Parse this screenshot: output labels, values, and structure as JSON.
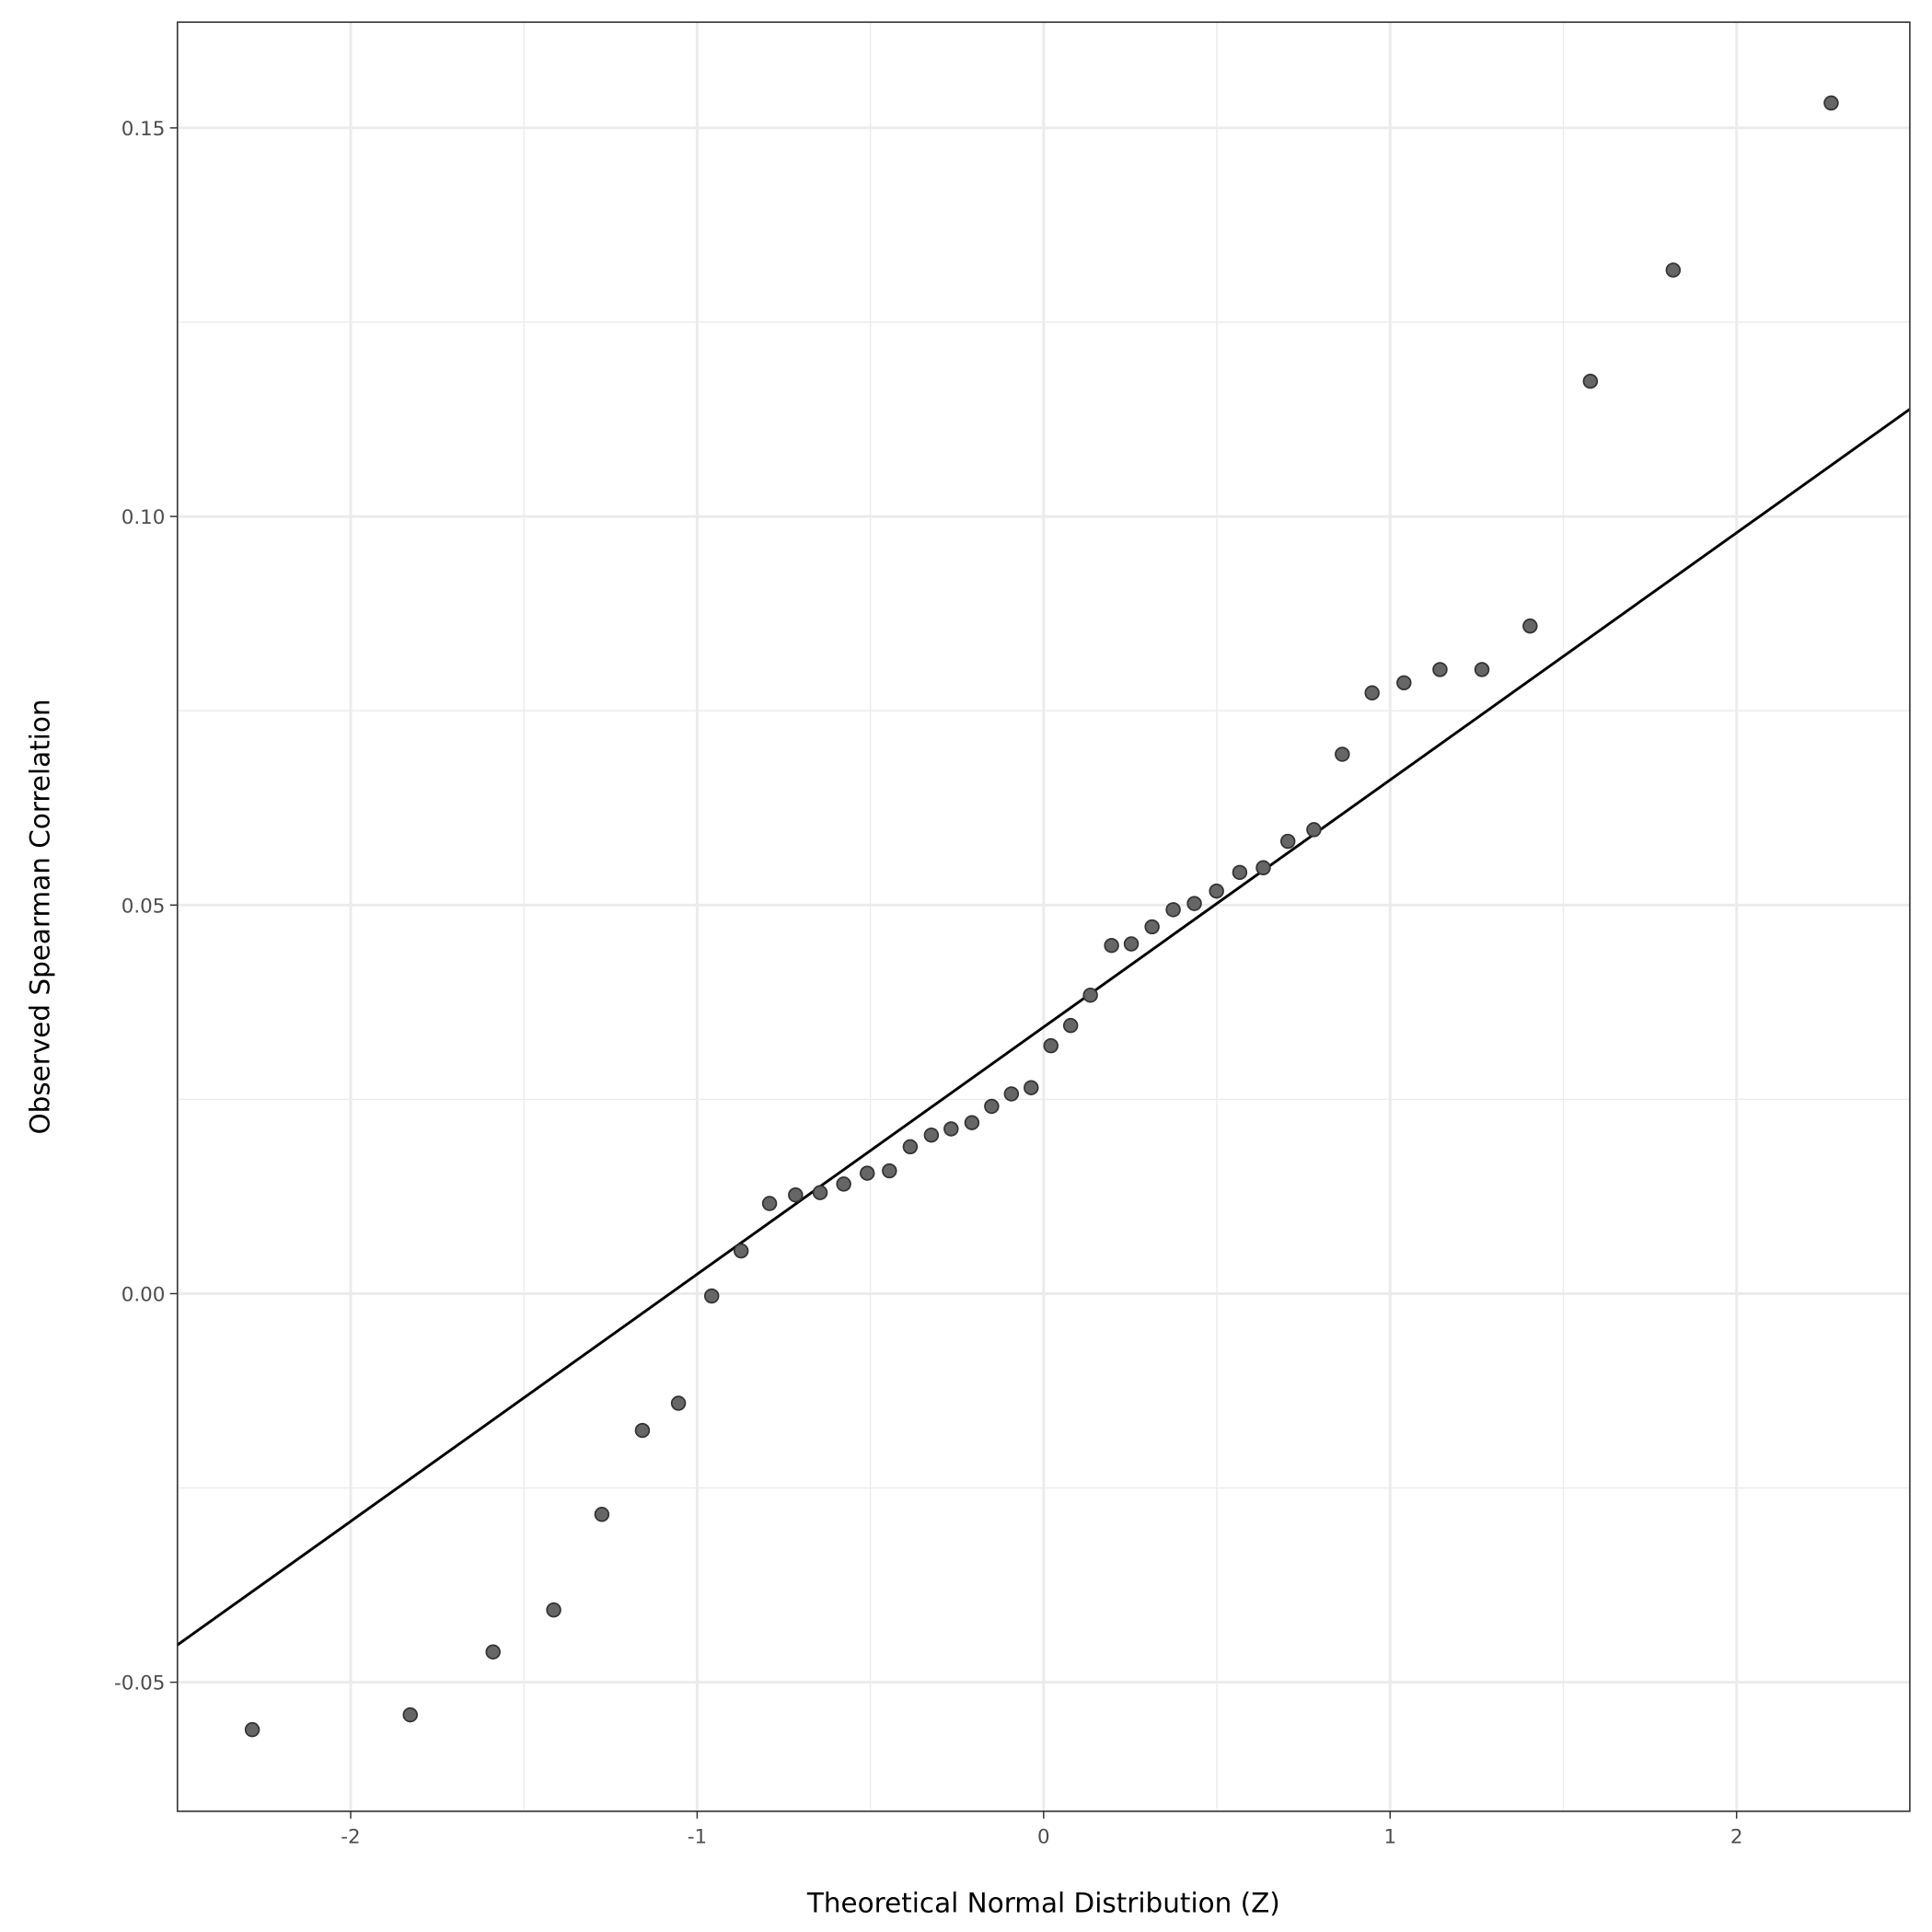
{
  "chart_data": {
    "type": "scatter",
    "title": "",
    "xlabel": "Theoretical Normal Distribution (Z)",
    "ylabel": "Observed Spearman Correlation",
    "xlim": [
      -2.5,
      2.5
    ],
    "ylim": [
      -0.0666,
      0.1636
    ],
    "xticks": [
      -2,
      -1,
      0,
      1,
      2
    ],
    "xtick_labels": [
      "-2",
      "-1",
      "0",
      "1",
      "2"
    ],
    "yticks": [
      -0.05,
      0.0,
      0.05,
      0.1,
      0.15
    ],
    "ytick_labels": [
      "-0.05",
      "0.00",
      "0.05",
      "0.10",
      "0.15"
    ],
    "grid": true,
    "point_color": "#666666",
    "line_color": "#000000",
    "reference_line": {
      "intercept": 0.0343,
      "slope": 0.0318
    },
    "x": [
      -2.284,
      -1.828,
      -1.589,
      -1.414,
      -1.275,
      -1.158,
      -1.054,
      -0.958,
      -0.873,
      -0.791,
      -0.716,
      -0.645,
      -0.577,
      -0.509,
      -0.445,
      -0.385,
      -0.324,
      -0.267,
      -0.207,
      -0.15,
      -0.093,
      -0.036,
      0.021,
      0.078,
      0.135,
      0.196,
      0.253,
      0.313,
      0.374,
      0.435,
      0.499,
      0.566,
      0.634,
      0.705,
      0.78,
      0.862,
      0.948,
      1.04,
      1.144,
      1.265,
      1.404,
      1.578,
      1.817,
      2.273
    ],
    "y": [
      -0.0561,
      -0.0542,
      -0.0461,
      -0.0407,
      -0.0284,
      -0.0176,
      -0.0141,
      -0.0003,
      0.0055,
      0.0116,
      0.0127,
      0.013,
      0.0141,
      0.0155,
      0.0158,
      0.0189,
      0.0204,
      0.0212,
      0.022,
      0.0241,
      0.0257,
      0.0265,
      0.0319,
      0.0345,
      0.0384,
      0.0448,
      0.045,
      0.0472,
      0.0494,
      0.0502,
      0.0518,
      0.0542,
      0.0548,
      0.0582,
      0.0597,
      0.0694,
      0.0773,
      0.0786,
      0.0803,
      0.0803,
      0.0859,
      0.1174,
      0.1317,
      0.1532
    ]
  }
}
